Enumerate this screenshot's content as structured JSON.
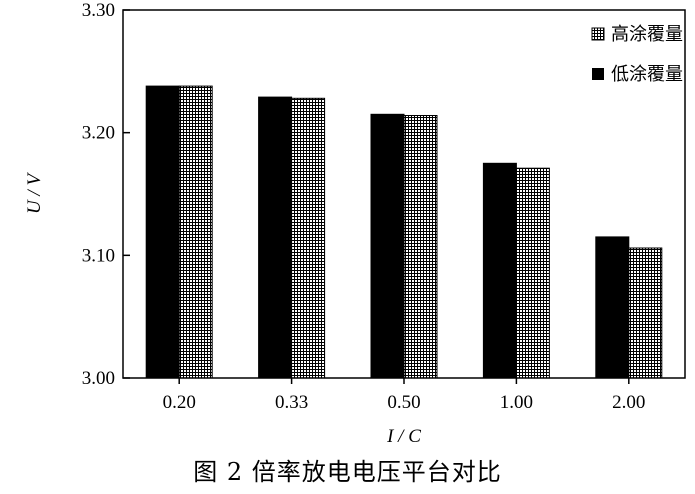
{
  "caption": "图 2 倍率放电电压平台对比",
  "chart_data": {
    "type": "bar",
    "categories": [
      "0.20",
      "0.33",
      "0.50",
      "1.00",
      "2.00"
    ],
    "series": [
      {
        "name": "低涂覆量",
        "values": [
          3.238,
          3.229,
          3.215,
          3.175,
          3.115
        ],
        "fill": "#000000",
        "pattern": "solid"
      },
      {
        "name": "高涂覆量",
        "values": [
          3.238,
          3.228,
          3.214,
          3.171,
          3.106
        ],
        "fill": "#000000",
        "pattern": "grid"
      }
    ],
    "legend": [
      "高涂覆量",
      "低涂覆量"
    ],
    "legend_placement": "top-right",
    "xlabel": "I / C",
    "ylabel": "U / V",
    "ylim": [
      3.0,
      3.3
    ],
    "yticks": [
      "3.00",
      "3.10",
      "3.20",
      "3.30"
    ],
    "grid": false
  }
}
